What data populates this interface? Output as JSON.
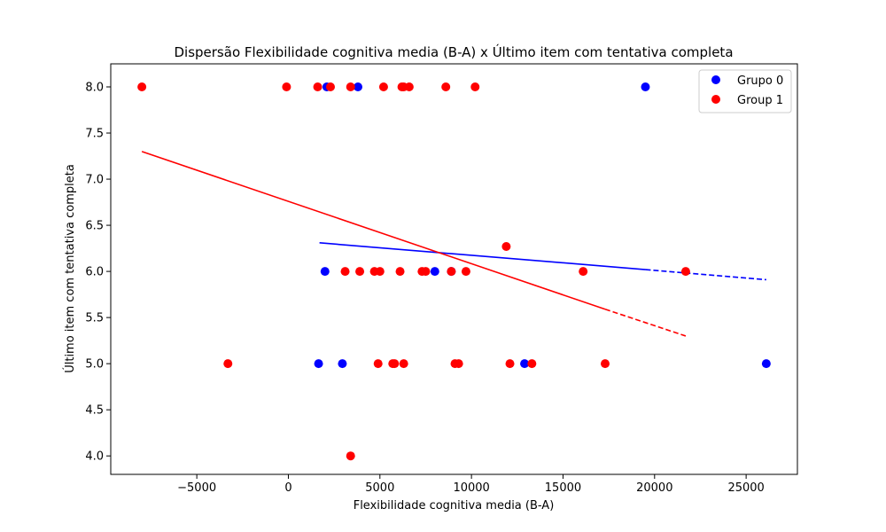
{
  "chart_data": {
    "type": "scatter",
    "title": "Dispersão Flexibilidade cognitiva media (B-A) x Último item com tentativa completa",
    "xlabel": "Flexibilidade cognitiva media (B-A)",
    "ylabel": "Último item com tentativa completa",
    "xlim": [
      -9700,
      27800
    ],
    "ylim": [
      3.8,
      8.25
    ],
    "x_ticks": [
      -5000,
      0,
      5000,
      10000,
      15000,
      20000,
      25000
    ],
    "x_tick_labels": [
      "−5000",
      "0",
      "5000",
      "10000",
      "15000",
      "20000",
      "25000"
    ],
    "y_ticks": [
      4.0,
      4.5,
      5.0,
      5.5,
      6.0,
      6.5,
      7.0,
      7.5,
      8.0
    ],
    "y_tick_labels": [
      "4.0",
      "4.5",
      "5.0",
      "5.5",
      "6.0",
      "6.5",
      "7.0",
      "7.5",
      "8.0"
    ],
    "grid": false,
    "legend_position": "top-right",
    "series": [
      {
        "name": "Grupo 0",
        "color": "#0000ff",
        "points": [
          {
            "x": 2100,
            "y": 8.0
          },
          {
            "x": 3800,
            "y": 8.0
          },
          {
            "x": 19500,
            "y": 8.0
          },
          {
            "x": 2000,
            "y": 6.0
          },
          {
            "x": 8000,
            "y": 6.0
          },
          {
            "x": 8900,
            "y": 6.0
          },
          {
            "x": 1650,
            "y": 5.0
          },
          {
            "x": 2950,
            "y": 5.0
          },
          {
            "x": 12900,
            "y": 5.0
          },
          {
            "x": 26100,
            "y": 5.0
          }
        ],
        "trend_solid": {
          "x": [
            1700,
            19500
          ],
          "y": [
            6.31,
            6.02
          ]
        },
        "trend_dashed": {
          "x": [
            19500,
            26100
          ],
          "y": [
            6.02,
            5.91
          ]
        }
      },
      {
        "name": "Group 1",
        "color": "#ff0000",
        "points": [
          {
            "x": -8000,
            "y": 8.0
          },
          {
            "x": -100,
            "y": 8.0
          },
          {
            "x": 1600,
            "y": 8.0
          },
          {
            "x": 2300,
            "y": 8.0
          },
          {
            "x": 3400,
            "y": 8.0
          },
          {
            "x": 5200,
            "y": 8.0
          },
          {
            "x": 6200,
            "y": 8.0
          },
          {
            "x": 6300,
            "y": 8.0
          },
          {
            "x": 6600,
            "y": 8.0
          },
          {
            "x": 8600,
            "y": 8.0
          },
          {
            "x": 10200,
            "y": 8.0
          },
          {
            "x": 11900,
            "y": 6.27
          },
          {
            "x": 3100,
            "y": 6.0
          },
          {
            "x": 3900,
            "y": 6.0
          },
          {
            "x": 4700,
            "y": 6.0
          },
          {
            "x": 5000,
            "y": 6.0
          },
          {
            "x": 6100,
            "y": 6.0
          },
          {
            "x": 7300,
            "y": 6.0
          },
          {
            "x": 7500,
            "y": 6.0
          },
          {
            "x": 8900,
            "y": 6.0
          },
          {
            "x": 9700,
            "y": 6.0
          },
          {
            "x": 16100,
            "y": 6.0
          },
          {
            "x": 21700,
            "y": 6.0
          },
          {
            "x": -3300,
            "y": 5.0
          },
          {
            "x": 4900,
            "y": 5.0
          },
          {
            "x": 5700,
            "y": 5.0
          },
          {
            "x": 5800,
            "y": 5.0
          },
          {
            "x": 6300,
            "y": 5.0
          },
          {
            "x": 9100,
            "y": 5.0
          },
          {
            "x": 9300,
            "y": 5.0
          },
          {
            "x": 12100,
            "y": 5.0
          },
          {
            "x": 13300,
            "y": 5.0
          },
          {
            "x": 17300,
            "y": 5.0
          },
          {
            "x": 3400,
            "y": 4.0
          }
        ],
        "trend_solid": {
          "x": [
            -8000,
            17300
          ],
          "y": [
            7.3,
            5.59
          ]
        },
        "trend_dashed": {
          "x": [
            17300,
            21700
          ],
          "y": [
            5.59,
            5.3
          ]
        }
      }
    ]
  }
}
